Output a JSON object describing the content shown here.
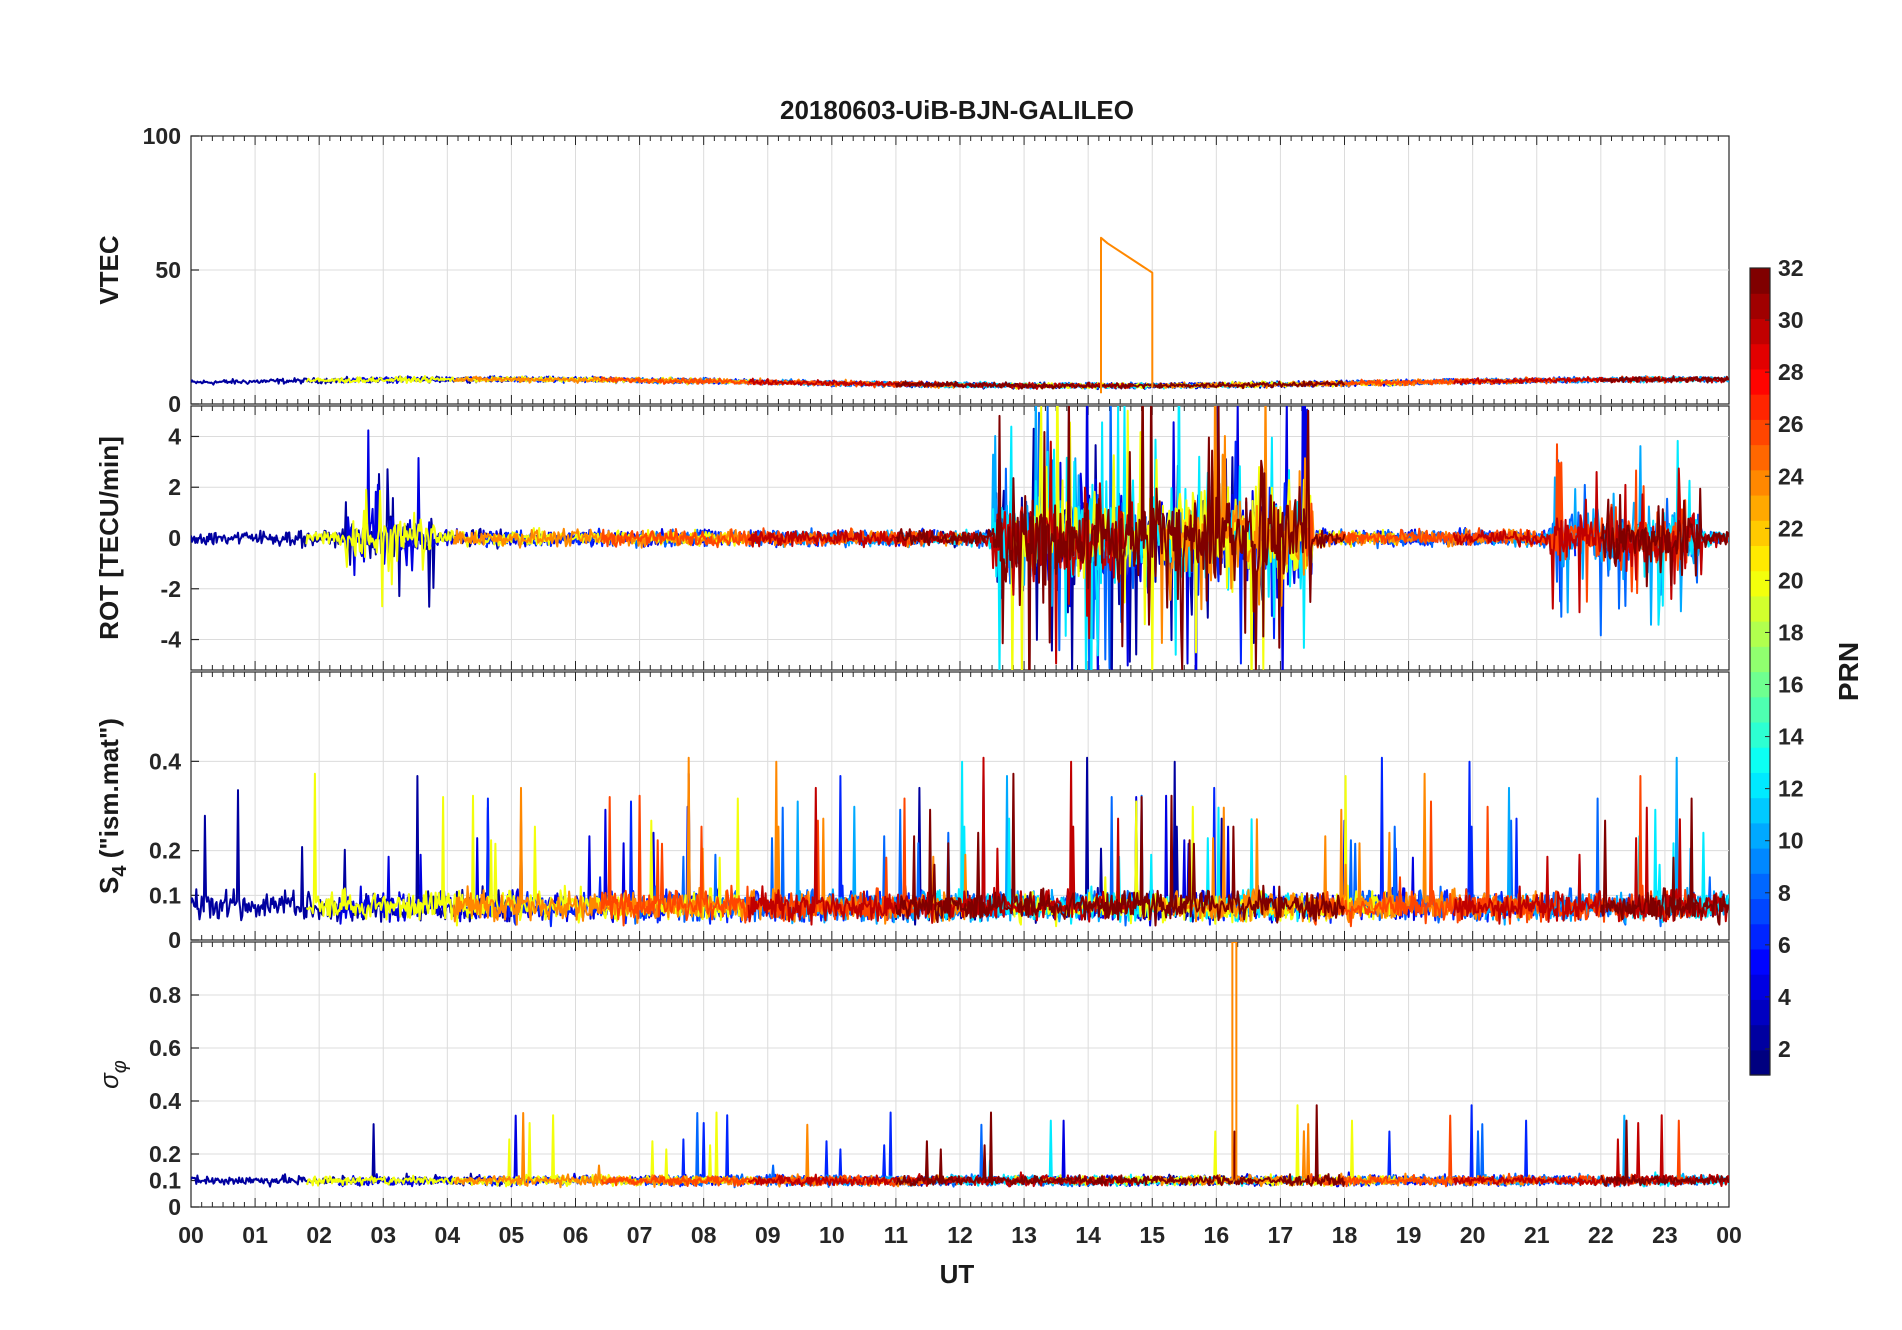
{
  "chart_data": {
    "type": "line",
    "title": "20180603-UiB-BJN-GALILEO",
    "xlabel": "UT",
    "x_ticks": [
      "00",
      "01",
      "02",
      "03",
      "04",
      "05",
      "06",
      "07",
      "08",
      "09",
      "10",
      "11",
      "12",
      "13",
      "14",
      "15",
      "16",
      "17",
      "18",
      "19",
      "20",
      "21",
      "22",
      "23",
      "00"
    ],
    "xlim": [
      0,
      24
    ],
    "grid": true,
    "panels": [
      {
        "name": "vtec",
        "ylabel": "VTEC",
        "ylim": [
          0,
          100
        ],
        "y_ticks": [
          "0",
          "50",
          "100"
        ],
        "y_tick_values": [
          0,
          50,
          100
        ],
        "baseline": 8,
        "noise": 0.8,
        "series": [
          {
            "prn": 24,
            "note_values": "spike",
            "x": [
              14.2,
              14.2,
              14.3,
              15.0,
              15.0
            ],
            "y": [
              4,
              62,
              60,
              49,
              6
            ]
          }
        ]
      },
      {
        "name": "rot",
        "ylabel": "ROT [TECU/min]",
        "ylim": [
          -5.2,
          5.2
        ],
        "y_ticks": [
          "-4",
          "-2",
          "0",
          "2",
          "4"
        ],
        "y_tick_values": [
          -4,
          -2,
          0,
          2,
          4
        ],
        "baseline": 0,
        "noise": 0.25,
        "active_windows": [
          [
            2.4,
            3.8,
            1.8
          ],
          [
            12.5,
            17.5,
            3.5
          ],
          [
            21.2,
            23.6,
            2.0
          ]
        ]
      },
      {
        "name": "s4",
        "ylabel": "S4 (\"ism.mat\")",
        "ylabel_main": "S",
        "ylabel_sub": "4",
        "ylabel_rest": " (\"ism.mat\")",
        "ylim": [
          0,
          0.6
        ],
        "y_ticks": [
          "0",
          "0.1",
          "0.2",
          "0.4"
        ],
        "y_tick_values": [
          0,
          0.1,
          0.2,
          0.4
        ],
        "baseline": 0.06,
        "noise": 0.02,
        "peak_max": 0.45
      },
      {
        "name": "sigma-phi",
        "ylabel": "σφ",
        "ylabel_main": "σ",
        "ylabel_sub": "φ",
        "ylim": [
          0,
          1
        ],
        "y_ticks": [
          "0",
          "0.1",
          "0.2",
          "0.4",
          "0.6",
          "0.8"
        ],
        "y_tick_values": [
          0,
          0.1,
          0.2,
          0.4,
          0.6,
          0.8
        ],
        "baseline": 0.1,
        "noise": 0.015,
        "peak_max": 1.0
      }
    ],
    "colorbar": {
      "label": "PRN",
      "range": [
        1,
        32
      ],
      "ticks": [
        "2",
        "4",
        "6",
        "8",
        "10",
        "12",
        "14",
        "16",
        "18",
        "20",
        "22",
        "24",
        "26",
        "28",
        "30",
        "32"
      ],
      "tick_values": [
        2,
        4,
        6,
        8,
        10,
        12,
        14,
        16,
        18,
        20,
        22,
        24,
        26,
        28,
        30,
        32
      ],
      "colormap": "jet",
      "steps": 32
    },
    "prns": [
      2,
      4,
      6,
      8,
      10,
      12,
      20,
      24,
      26,
      30,
      32
    ]
  }
}
